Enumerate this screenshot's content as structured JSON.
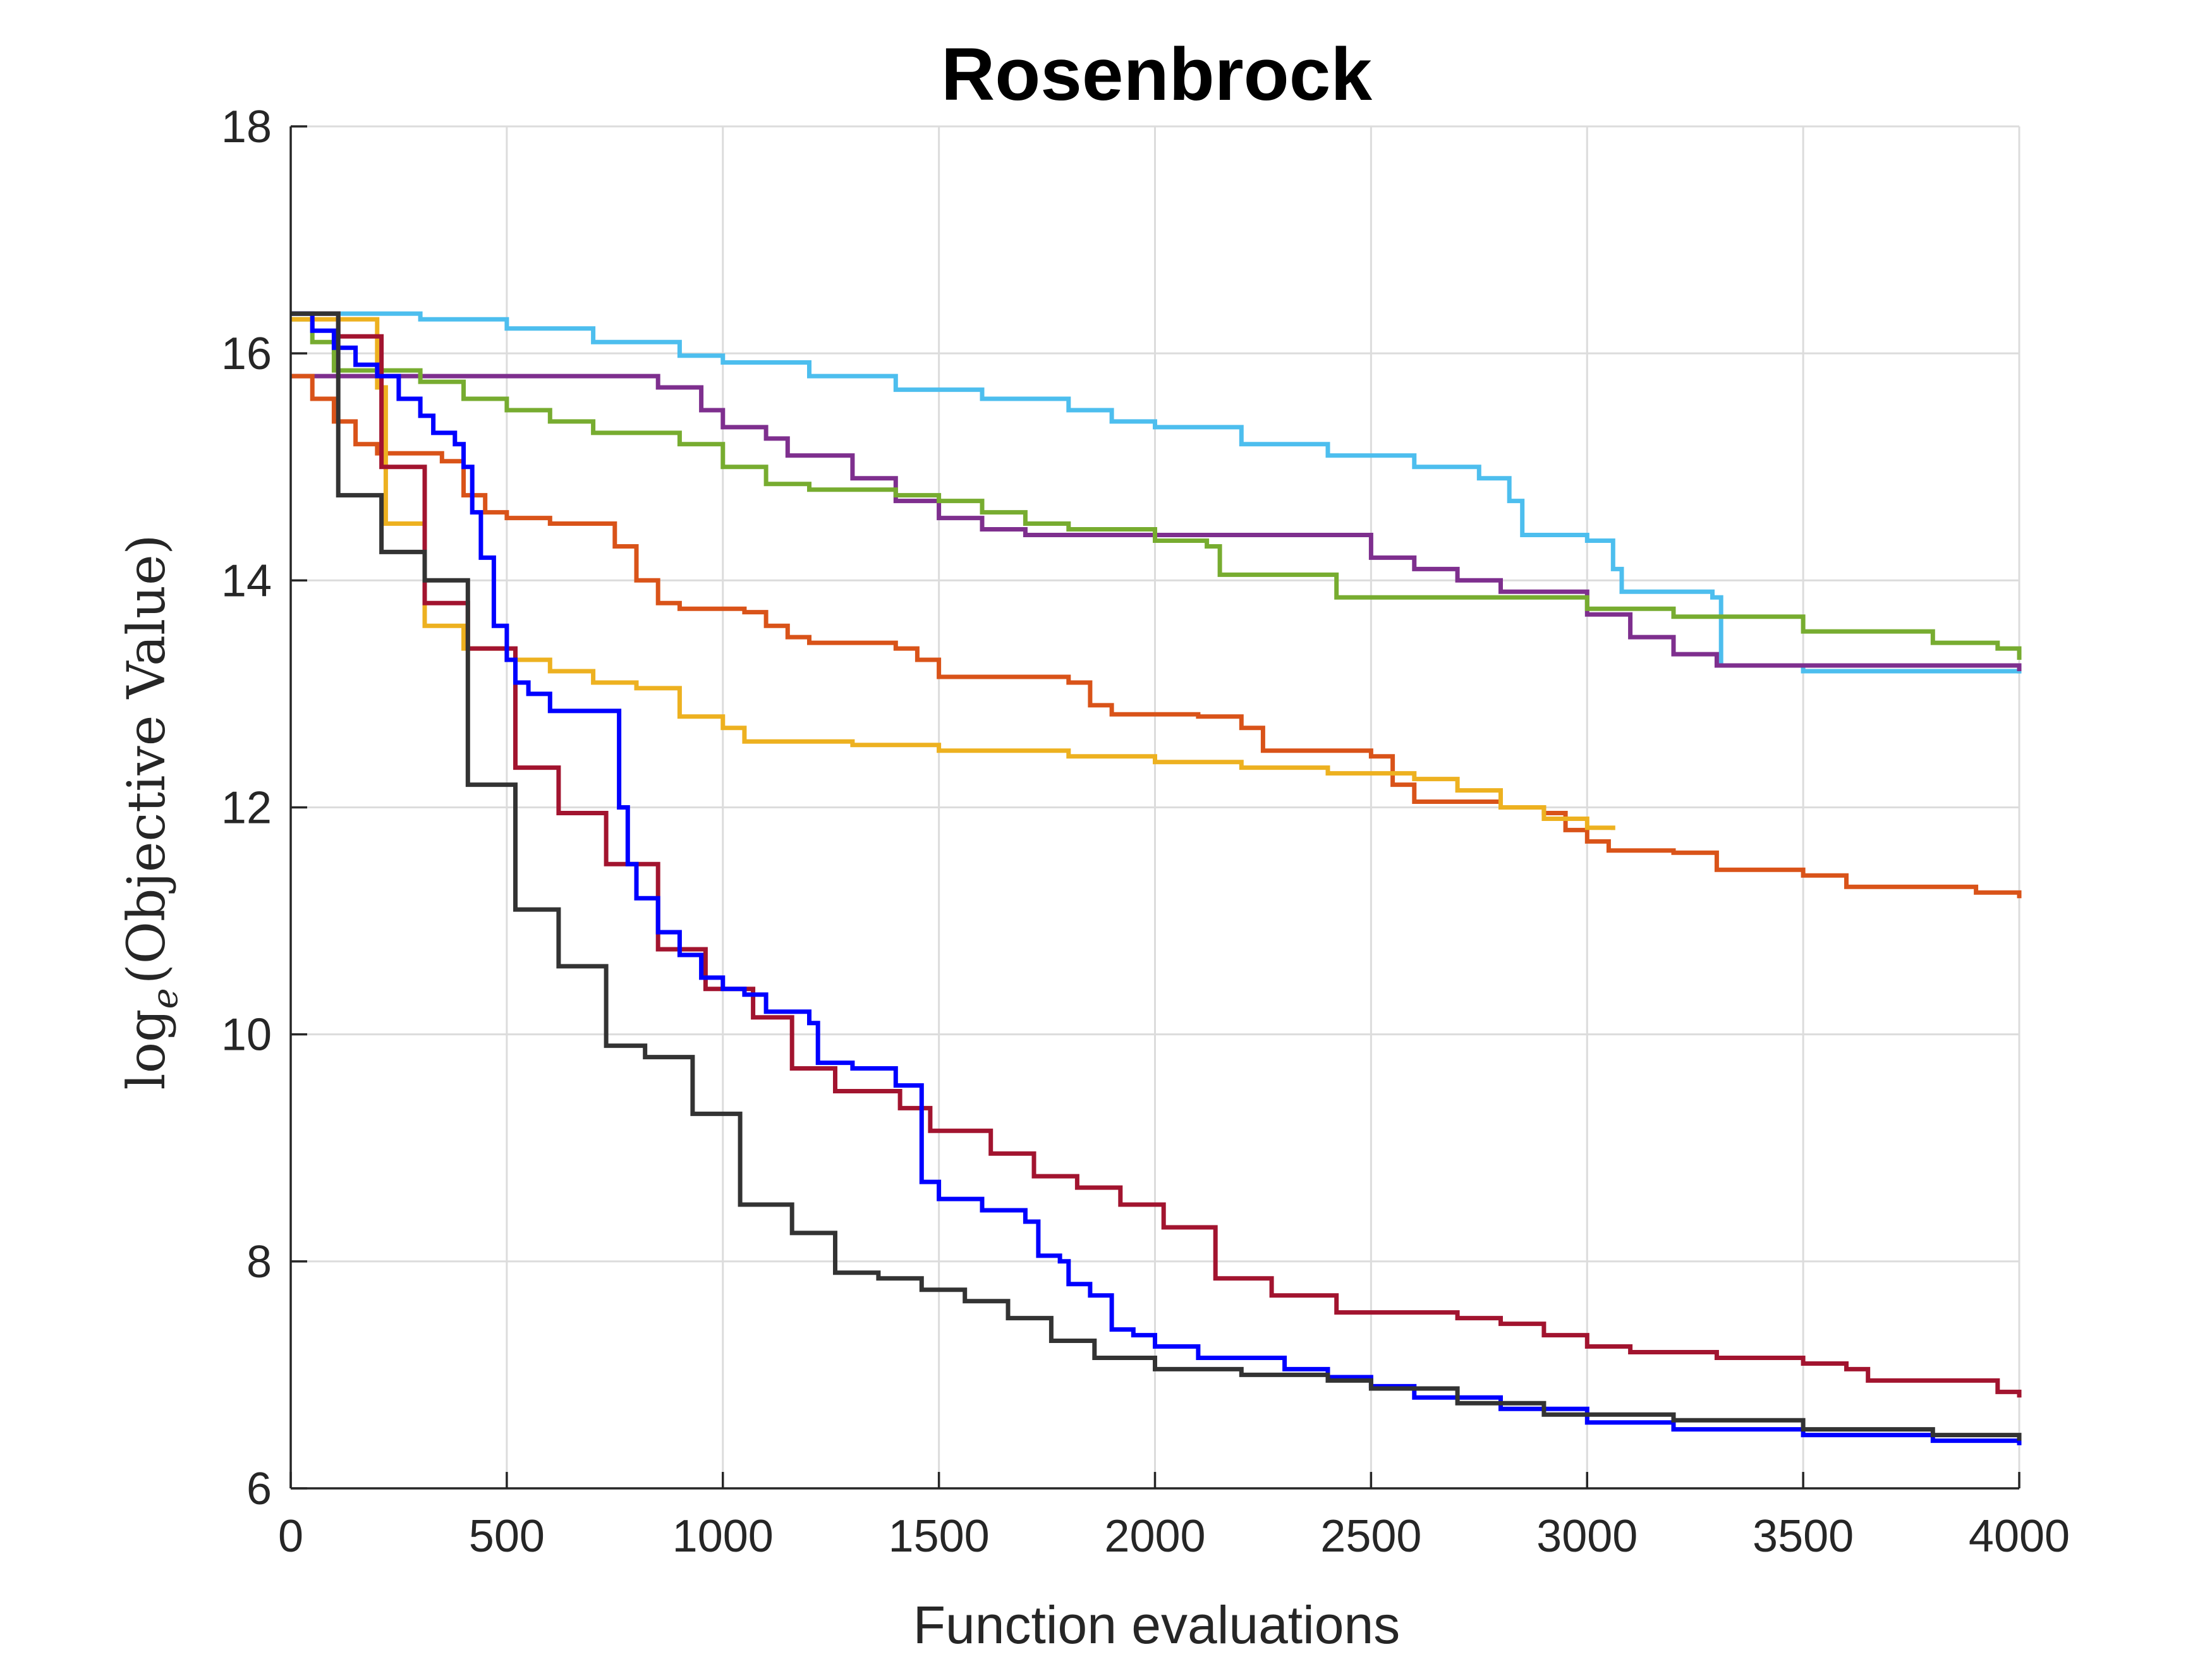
{
  "chart_data": {
    "type": "line",
    "title": "Rosenbrock",
    "xlabel": "Function evaluations",
    "ylabel_main": "log",
    "ylabel_sub": "e",
    "ylabel_rest": "(Objective Value)",
    "xlim": [
      0,
      4000
    ],
    "ylim": [
      6,
      18
    ],
    "xticks": [
      0,
      500,
      1000,
      1500,
      2000,
      2500,
      3000,
      3500,
      4000
    ],
    "yticks": [
      6,
      8,
      10,
      12,
      14,
      16,
      18
    ],
    "grid": true,
    "series": [
      {
        "color": "#4DBEEE",
        "points": [
          [
            0,
            16.35
          ],
          [
            300,
            16.3
          ],
          [
            500,
            16.22
          ],
          [
            700,
            16.1
          ],
          [
            900,
            15.98
          ],
          [
            1000,
            15.92
          ],
          [
            1200,
            15.8
          ],
          [
            1400,
            15.68
          ],
          [
            1600,
            15.6
          ],
          [
            1800,
            15.5
          ],
          [
            1900,
            15.4
          ],
          [
            2000,
            15.35
          ],
          [
            2200,
            15.2
          ],
          [
            2400,
            15.1
          ],
          [
            2600,
            15.0
          ],
          [
            2750,
            14.9
          ],
          [
            2820,
            14.7
          ],
          [
            2850,
            14.4
          ],
          [
            3000,
            14.35
          ],
          [
            3060,
            14.1
          ],
          [
            3080,
            13.9
          ],
          [
            3290,
            13.85
          ],
          [
            3310,
            13.25
          ],
          [
            3500,
            13.2
          ],
          [
            4000,
            13.18
          ]
        ]
      },
      {
        "color": "#7E2F8E",
        "points": [
          [
            0,
            15.8
          ],
          [
            800,
            15.8
          ],
          [
            850,
            15.7
          ],
          [
            950,
            15.5
          ],
          [
            1000,
            15.35
          ],
          [
            1100,
            15.25
          ],
          [
            1150,
            15.1
          ],
          [
            1300,
            14.9
          ],
          [
            1400,
            14.7
          ],
          [
            1500,
            14.55
          ],
          [
            1600,
            14.45
          ],
          [
            1700,
            14.4
          ],
          [
            2400,
            14.4
          ],
          [
            2500,
            14.2
          ],
          [
            2600,
            14.1
          ],
          [
            2700,
            14.0
          ],
          [
            2800,
            13.9
          ],
          [
            3000,
            13.7
          ],
          [
            3100,
            13.5
          ],
          [
            3200,
            13.35
          ],
          [
            3300,
            13.25
          ],
          [
            4000,
            13.2
          ]
        ]
      },
      {
        "color": "#77AC30",
        "points": [
          [
            0,
            16.3
          ],
          [
            50,
            16.1
          ],
          [
            100,
            15.85
          ],
          [
            300,
            15.75
          ],
          [
            400,
            15.6
          ],
          [
            500,
            15.5
          ],
          [
            600,
            15.4
          ],
          [
            700,
            15.3
          ],
          [
            900,
            15.2
          ],
          [
            1000,
            15.0
          ],
          [
            1100,
            14.85
          ],
          [
            1200,
            14.8
          ],
          [
            1400,
            14.75
          ],
          [
            1500,
            14.7
          ],
          [
            1600,
            14.6
          ],
          [
            1700,
            14.5
          ],
          [
            1800,
            14.45
          ],
          [
            2000,
            14.35
          ],
          [
            2120,
            14.3
          ],
          [
            2150,
            14.05
          ],
          [
            2400,
            14.05
          ],
          [
            2420,
            13.85
          ],
          [
            2800,
            13.85
          ],
          [
            3000,
            13.75
          ],
          [
            3200,
            13.68
          ],
          [
            3500,
            13.55
          ],
          [
            3800,
            13.45
          ],
          [
            3950,
            13.4
          ],
          [
            4000,
            13.3
          ]
        ]
      },
      {
        "color": "#D95319",
        "points": [
          [
            0,
            15.8
          ],
          [
            50,
            15.6
          ],
          [
            100,
            15.4
          ],
          [
            150,
            15.2
          ],
          [
            200,
            15.12
          ],
          [
            350,
            15.05
          ],
          [
            400,
            14.75
          ],
          [
            450,
            14.6
          ],
          [
            500,
            14.55
          ],
          [
            600,
            14.5
          ],
          [
            700,
            14.5
          ],
          [
            750,
            14.3
          ],
          [
            800,
            14.0
          ],
          [
            850,
            13.8
          ],
          [
            900,
            13.75
          ],
          [
            1050,
            13.72
          ],
          [
            1100,
            13.6
          ],
          [
            1150,
            13.5
          ],
          [
            1200,
            13.45
          ],
          [
            1400,
            13.4
          ],
          [
            1450,
            13.3
          ],
          [
            1500,
            13.15
          ],
          [
            1800,
            13.1
          ],
          [
            1850,
            12.9
          ],
          [
            1900,
            12.82
          ],
          [
            2100,
            12.8
          ],
          [
            2200,
            12.7
          ],
          [
            2250,
            12.5
          ],
          [
            2500,
            12.45
          ],
          [
            2550,
            12.2
          ],
          [
            2600,
            12.05
          ],
          [
            2800,
            12.0
          ],
          [
            2900,
            11.95
          ],
          [
            2950,
            11.8
          ],
          [
            3000,
            11.7
          ],
          [
            3050,
            11.62
          ],
          [
            3200,
            11.6
          ],
          [
            3300,
            11.45
          ],
          [
            3500,
            11.4
          ],
          [
            3600,
            11.3
          ],
          [
            3900,
            11.25
          ],
          [
            4000,
            11.2
          ]
        ]
      },
      {
        "color": "#EDB120",
        "points": [
          [
            0,
            16.3
          ],
          [
            200,
            15.7
          ],
          [
            220,
            14.5
          ],
          [
            300,
            14.5
          ],
          [
            310,
            13.6
          ],
          [
            400,
            13.4
          ],
          [
            500,
            13.3
          ],
          [
            600,
            13.2
          ],
          [
            700,
            13.1
          ],
          [
            800,
            13.05
          ],
          [
            900,
            12.8
          ],
          [
            1000,
            12.7
          ],
          [
            1050,
            12.58
          ],
          [
            1300,
            12.55
          ],
          [
            1500,
            12.5
          ],
          [
            1800,
            12.45
          ],
          [
            2000,
            12.4
          ],
          [
            2200,
            12.35
          ],
          [
            2400,
            12.3
          ],
          [
            2600,
            12.25
          ],
          [
            2700,
            12.15
          ],
          [
            2800,
            12.0
          ],
          [
            2900,
            11.9
          ],
          [
            3000,
            11.82
          ],
          [
            3060,
            11.8
          ]
        ]
      },
      {
        "color": "#A2142F",
        "points": [
          [
            0,
            16.35
          ],
          [
            100,
            16.35
          ],
          [
            110,
            16.15
          ],
          [
            200,
            16.15
          ],
          [
            210,
            15.0
          ],
          [
            300,
            15.0
          ],
          [
            310,
            13.8
          ],
          [
            400,
            13.8
          ],
          [
            410,
            13.4
          ],
          [
            500,
            13.4
          ],
          [
            520,
            12.35
          ],
          [
            600,
            12.35
          ],
          [
            620,
            11.95
          ],
          [
            700,
            11.95
          ],
          [
            730,
            11.5
          ],
          [
            830,
            11.5
          ],
          [
            850,
            10.75
          ],
          [
            950,
            10.75
          ],
          [
            960,
            10.4
          ],
          [
            1050,
            10.4
          ],
          [
            1070,
            10.15
          ],
          [
            1150,
            10.15
          ],
          [
            1160,
            9.7
          ],
          [
            1250,
            9.7
          ],
          [
            1260,
            9.5
          ],
          [
            1400,
            9.5
          ],
          [
            1410,
            9.35
          ],
          [
            1470,
            9.35
          ],
          [
            1480,
            9.15
          ],
          [
            1600,
            9.15
          ],
          [
            1620,
            8.95
          ],
          [
            1700,
            8.95
          ],
          [
            1720,
            8.75
          ],
          [
            1800,
            8.75
          ],
          [
            1820,
            8.65
          ],
          [
            1900,
            8.65
          ],
          [
            1920,
            8.5
          ],
          [
            2000,
            8.5
          ],
          [
            2020,
            8.3
          ],
          [
            2120,
            8.3
          ],
          [
            2140,
            7.85
          ],
          [
            2250,
            7.85
          ],
          [
            2270,
            7.7
          ],
          [
            2400,
            7.7
          ],
          [
            2420,
            7.55
          ],
          [
            2700,
            7.5
          ],
          [
            2800,
            7.45
          ],
          [
            2900,
            7.35
          ],
          [
            3000,
            7.25
          ],
          [
            3100,
            7.2
          ],
          [
            3300,
            7.15
          ],
          [
            3500,
            7.1
          ],
          [
            3600,
            7.05
          ],
          [
            3650,
            6.95
          ],
          [
            3950,
            6.85
          ],
          [
            4000,
            6.8
          ]
        ]
      },
      {
        "color": "#0000FF",
        "points": [
          [
            0,
            16.35
          ],
          [
            50,
            16.2
          ],
          [
            100,
            16.05
          ],
          [
            150,
            15.9
          ],
          [
            200,
            15.8
          ],
          [
            250,
            15.6
          ],
          [
            300,
            15.45
          ],
          [
            330,
            15.3
          ],
          [
            380,
            15.2
          ],
          [
            400,
            15.0
          ],
          [
            420,
            14.6
          ],
          [
            440,
            14.2
          ],
          [
            470,
            13.6
          ],
          [
            500,
            13.3
          ],
          [
            520,
            13.1
          ],
          [
            550,
            13.0
          ],
          [
            600,
            12.85
          ],
          [
            700,
            12.85
          ],
          [
            740,
            12.85
          ],
          [
            760,
            12.0
          ],
          [
            780,
            11.5
          ],
          [
            800,
            11.2
          ],
          [
            850,
            10.9
          ],
          [
            900,
            10.7
          ],
          [
            950,
            10.5
          ],
          [
            1000,
            10.4
          ],
          [
            1050,
            10.35
          ],
          [
            1100,
            10.2
          ],
          [
            1200,
            10.1
          ],
          [
            1220,
            9.75
          ],
          [
            1300,
            9.7
          ],
          [
            1400,
            9.55
          ],
          [
            1440,
            9.55
          ],
          [
            1460,
            8.7
          ],
          [
            1500,
            8.55
          ],
          [
            1600,
            8.45
          ],
          [
            1700,
            8.35
          ],
          [
            1730,
            8.05
          ],
          [
            1780,
            8.0
          ],
          [
            1800,
            7.8
          ],
          [
            1850,
            7.7
          ],
          [
            1900,
            7.4
          ],
          [
            1950,
            7.35
          ],
          [
            2000,
            7.25
          ],
          [
            2100,
            7.15
          ],
          [
            2300,
            7.05
          ],
          [
            2400,
            6.98
          ],
          [
            2500,
            6.9
          ],
          [
            2600,
            6.8
          ],
          [
            2800,
            6.7
          ],
          [
            3000,
            6.58
          ],
          [
            3200,
            6.52
          ],
          [
            3500,
            6.47
          ],
          [
            3800,
            6.42
          ],
          [
            4000,
            6.38
          ]
        ]
      },
      {
        "color": "#333333",
        "points": [
          [
            0,
            16.35
          ],
          [
            100,
            16.35
          ],
          [
            110,
            14.75
          ],
          [
            200,
            14.75
          ],
          [
            210,
            14.25
          ],
          [
            300,
            14.25
          ],
          [
            310,
            14.0
          ],
          [
            400,
            14.0
          ],
          [
            410,
            12.2
          ],
          [
            510,
            12.2
          ],
          [
            520,
            11.1
          ],
          [
            600,
            11.1
          ],
          [
            620,
            10.6
          ],
          [
            720,
            10.6
          ],
          [
            730,
            9.9
          ],
          [
            800,
            9.9
          ],
          [
            820,
            9.8
          ],
          [
            900,
            9.8
          ],
          [
            930,
            9.3
          ],
          [
            1030,
            9.3
          ],
          [
            1040,
            8.5
          ],
          [
            1140,
            8.5
          ],
          [
            1160,
            8.25
          ],
          [
            1250,
            8.25
          ],
          [
            1260,
            7.9
          ],
          [
            1350,
            7.9
          ],
          [
            1360,
            7.85
          ],
          [
            1450,
            7.85
          ],
          [
            1460,
            7.75
          ],
          [
            1550,
            7.75
          ],
          [
            1560,
            7.65
          ],
          [
            1650,
            7.65
          ],
          [
            1660,
            7.5
          ],
          [
            1750,
            7.5
          ],
          [
            1760,
            7.3
          ],
          [
            1850,
            7.3
          ],
          [
            1860,
            7.15
          ],
          [
            1950,
            7.15
          ],
          [
            2000,
            7.05
          ],
          [
            2200,
            7.0
          ],
          [
            2400,
            6.95
          ],
          [
            2500,
            6.88
          ],
          [
            2700,
            6.75
          ],
          [
            2900,
            6.65
          ],
          [
            3200,
            6.6
          ],
          [
            3500,
            6.52
          ],
          [
            3800,
            6.47
          ],
          [
            4000,
            6.42
          ]
        ]
      }
    ]
  }
}
